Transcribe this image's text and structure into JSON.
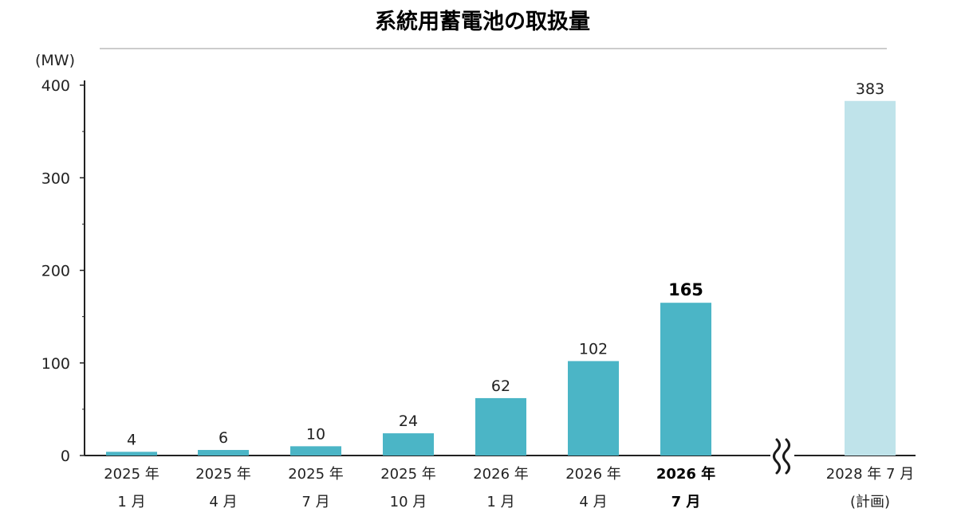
{
  "chart_data": {
    "type": "bar",
    "title": "系統用蓄電池の取扱量",
    "unit": "(MW)",
    "ylim": [
      0,
      400
    ],
    "yticks": [
      "0",
      "100",
      "200",
      "300",
      "400"
    ],
    "categories": [
      {
        "line1": "2025 年",
        "line2": "1 月"
      },
      {
        "line1": "2025 年",
        "line2": "4 月"
      },
      {
        "line1": "2025 年",
        "line2": "7 月"
      },
      {
        "line1": "2025 年",
        "line2": "10 月"
      },
      {
        "line1": "2026 年",
        "line2": "1 月"
      },
      {
        "line1": "2026 年",
        "line2": "4 月"
      },
      {
        "line1": "2026 年",
        "line2": "7 月"
      },
      {
        "line1": "2028 年 7 月",
        "line2": "(計画)"
      }
    ],
    "values": [
      4,
      6,
      10,
      24,
      62,
      102,
      165,
      383
    ],
    "value_labels": [
      "4",
      "6",
      "10",
      "24",
      "62",
      "102",
      "165",
      "383"
    ],
    "highlight_index": 6,
    "planned_index": 7,
    "axis_break": true,
    "grid": false,
    "colors": {
      "bar": "#4bb5c6",
      "planned_bar": "#bfe3ea",
      "axis": "#222222",
      "break": "#1a1a1a"
    }
  }
}
